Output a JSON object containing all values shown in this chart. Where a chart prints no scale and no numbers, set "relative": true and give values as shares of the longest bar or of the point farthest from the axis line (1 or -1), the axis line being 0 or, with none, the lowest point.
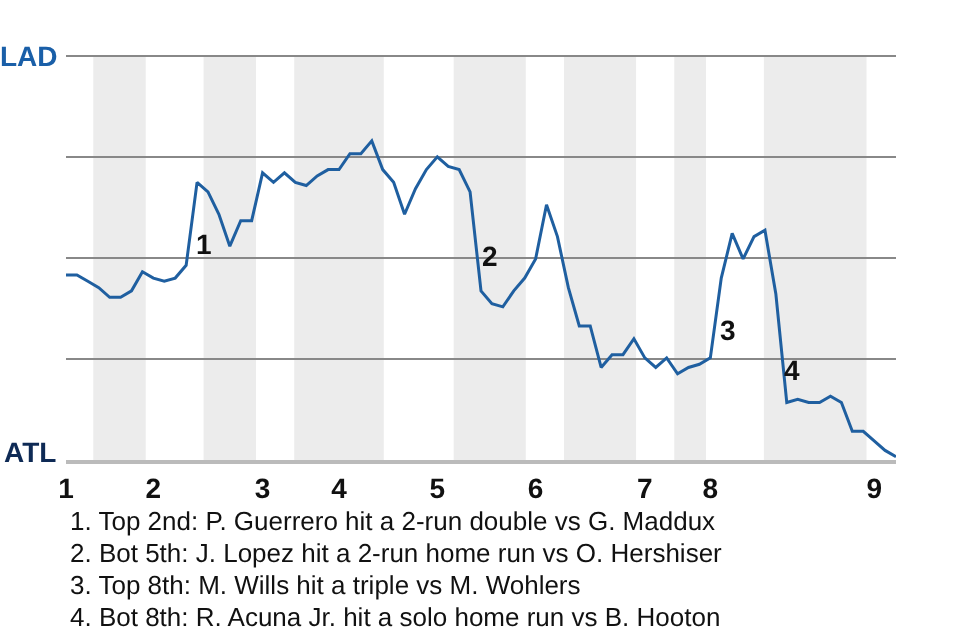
{
  "chart_data": {
    "type": "line",
    "relative": true,
    "categories": [
      "1",
      null,
      null,
      null,
      null,
      null,
      null,
      null,
      "2",
      null,
      null,
      null,
      null,
      null,
      null,
      null,
      null,
      null,
      "3",
      null,
      null,
      null,
      null,
      null,
      null,
      "4",
      null,
      null,
      null,
      null,
      null,
      null,
      null,
      null,
      "5",
      null,
      null,
      null,
      null,
      null,
      null,
      null,
      null,
      "6",
      null,
      null,
      null,
      null,
      null,
      null,
      null,
      null,
      null,
      "7",
      null,
      null,
      null,
      null,
      null,
      "8",
      null,
      null,
      null,
      null,
      null,
      null,
      null,
      null,
      null,
      null,
      null,
      null,
      null,
      null,
      "9",
      null,
      null
    ],
    "series": [
      {
        "color": "#1f5fa0",
        "values": [
          0.58,
          0.58,
          0.56,
          0.54,
          0.51,
          0.51,
          0.53,
          0.59,
          0.57,
          0.56,
          0.57,
          0.61,
          0.87,
          0.84,
          0.77,
          0.67,
          0.75,
          0.75,
          0.9,
          0.87,
          0.9,
          0.87,
          0.86,
          0.89,
          0.91,
          0.91,
          0.96,
          0.96,
          1,
          0.91,
          0.87,
          0.77,
          0.85,
          0.91,
          0.95,
          0.92,
          0.91,
          0.84,
          0.53,
          0.49,
          0.48,
          0.53,
          0.57,
          0.63,
          0.8,
          0.7,
          0.54,
          0.42,
          0.42,
          0.29,
          0.33,
          0.33,
          0.38,
          0.32,
          0.29,
          0.32,
          0.27,
          0.29,
          0.3,
          0.32,
          0.57,
          0.71,
          0.63,
          0.7,
          0.72,
          0.52,
          0.18,
          0.19,
          0.18,
          0.18,
          0.2,
          0.18,
          0.09,
          0.09,
          0.06,
          0.03,
          0.01
        ]
      }
    ],
    "grid": "y",
    "marker": "none",
    "line_style": "solid",
    "annotations": [
      "LAD",
      "ATL",
      "1",
      "2",
      "3",
      "4",
      "1. Top 2nd: P. Guerrero hit a 2-run double vs G. Maddux",
      "2. Bot 5th: J. Lopez hit a 2-run home run vs O. Hershiser",
      "3. Top 8th: M. Wills hit a triple vs M. Wohlers",
      "4. Bot 8th: R. Acuna Jr. hit a solo home run vs B. Hooton"
    ]
  }
}
